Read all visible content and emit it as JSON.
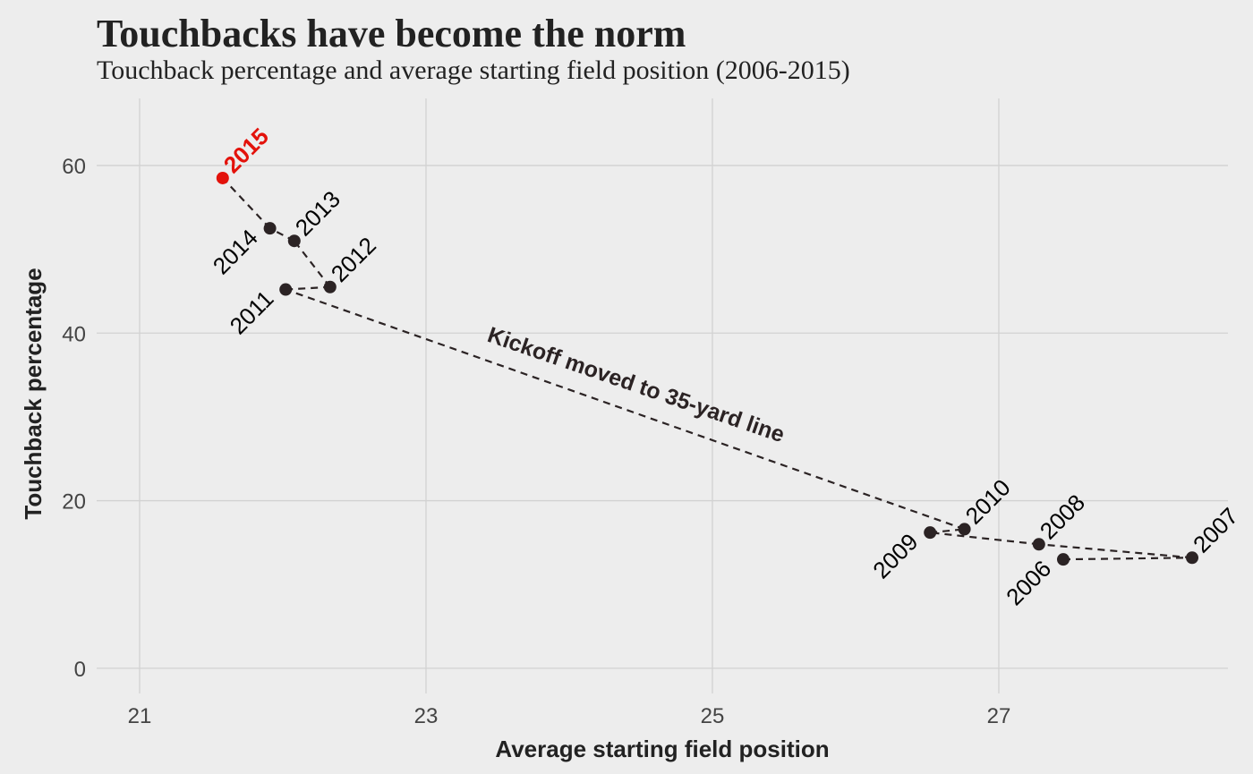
{
  "colors": {
    "background": "#ededed",
    "grid": "#d2d2d2",
    "point": "#2b2324",
    "highlight": "#e3120b"
  },
  "chart_data": {
    "type": "scatter",
    "title": "Touchbacks have become the norm",
    "subtitle": "Touchback percentage and average starting field position (2006-2015)",
    "xlabel": "Average starting field position",
    "ylabel": "Touchback percentage",
    "xlim": [
      20.7,
      28.6
    ],
    "ylim": [
      -3,
      68
    ],
    "x_ticks": [
      21,
      23,
      25,
      27
    ],
    "y_ticks": [
      0,
      20,
      40,
      60
    ],
    "grid": true,
    "points": [
      {
        "label": "2006",
        "x": 27.45,
        "y": 13.0
      },
      {
        "label": "2007",
        "x": 28.35,
        "y": 13.2
      },
      {
        "label": "2008",
        "x": 27.28,
        "y": 14.8
      },
      {
        "label": "2009",
        "x": 26.52,
        "y": 16.2
      },
      {
        "label": "2010",
        "x": 26.76,
        "y": 16.6
      },
      {
        "label": "2011",
        "x": 22.02,
        "y": 45.2
      },
      {
        "label": "2012",
        "x": 22.33,
        "y": 45.5
      },
      {
        "label": "2013",
        "x": 22.08,
        "y": 51.0
      },
      {
        "label": "2014",
        "x": 21.91,
        "y": 52.5
      },
      {
        "label": "2015",
        "x": 21.58,
        "y": 58.5,
        "highlight": true
      }
    ],
    "path_order": [
      "2006",
      "2007",
      "2008",
      "2009",
      "2010",
      "2011",
      "2012",
      "2013",
      "2014",
      "2015"
    ],
    "annotations": [
      {
        "text": "Kickoff moved to 35-yard line",
        "x": 24.45,
        "y": 33.0,
        "angle": 19
      }
    ]
  }
}
